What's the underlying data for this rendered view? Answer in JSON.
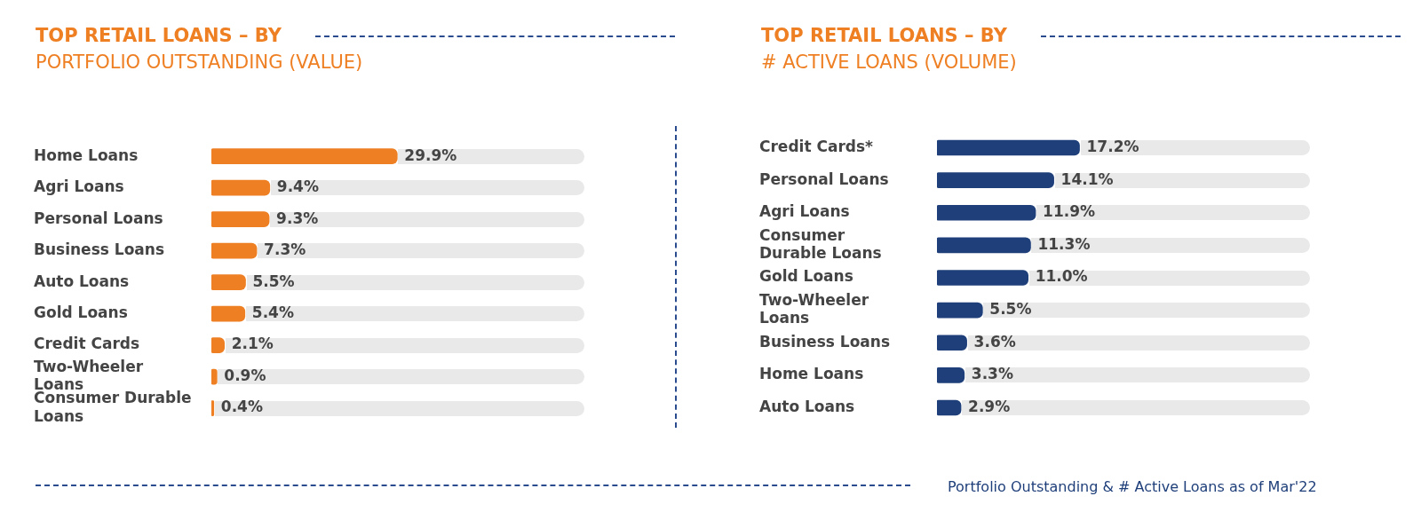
{
  "chart_data": [
    {
      "type": "bar",
      "orientation": "horizontal",
      "title": "TOP RETAIL LOANS – BY",
      "subtitle": "PORTFOLIO OUTSTANDING (VALUE)",
      "categories": [
        "Home Loans",
        "Agri Loans",
        "Personal Loans",
        "Business Loans",
        "Auto Loans",
        "Gold Loans",
        "Credit Cards",
        "Two-Wheeler Loans",
        "Consumer Durable Loans"
      ],
      "values": [
        29.9,
        9.4,
        9.3,
        7.3,
        5.5,
        5.4,
        2.1,
        0.9,
        0.4
      ],
      "value_labels": [
        "29.9%",
        "9.4%",
        "9.3%",
        "7.3%",
        "5.5%",
        "5.4%",
        "2.1%",
        "0.9%",
        "0.4%"
      ],
      "color": "#ee7f22",
      "tick_labels": "y"
    },
    {
      "type": "bar",
      "orientation": "horizontal",
      "title": "TOP RETAIL LOANS – BY",
      "subtitle": "# ACTIVE LOANS (VOLUME)",
      "categories": [
        "Credit Cards*",
        "Personal Loans",
        "Agri Loans",
        "Consumer Durable Loans",
        "Gold Loans",
        "Two-Wheeler Loans",
        "Business Loans",
        "Home Loans",
        "Auto Loans"
      ],
      "values": [
        17.2,
        14.1,
        11.9,
        11.3,
        11.0,
        5.5,
        3.6,
        3.3,
        2.9
      ],
      "value_labels": [
        "17.2%",
        "14.1%",
        "11.9%",
        "11.3%",
        "11.0%",
        "5.5%",
        "3.6%",
        "3.3%",
        "2.9%"
      ],
      "color": "#1f3f7a",
      "tick_labels": "y",
      "annotations": [
        "Portfolio Outstanding & # Active Loans as of Mar'22"
      ]
    }
  ]
}
